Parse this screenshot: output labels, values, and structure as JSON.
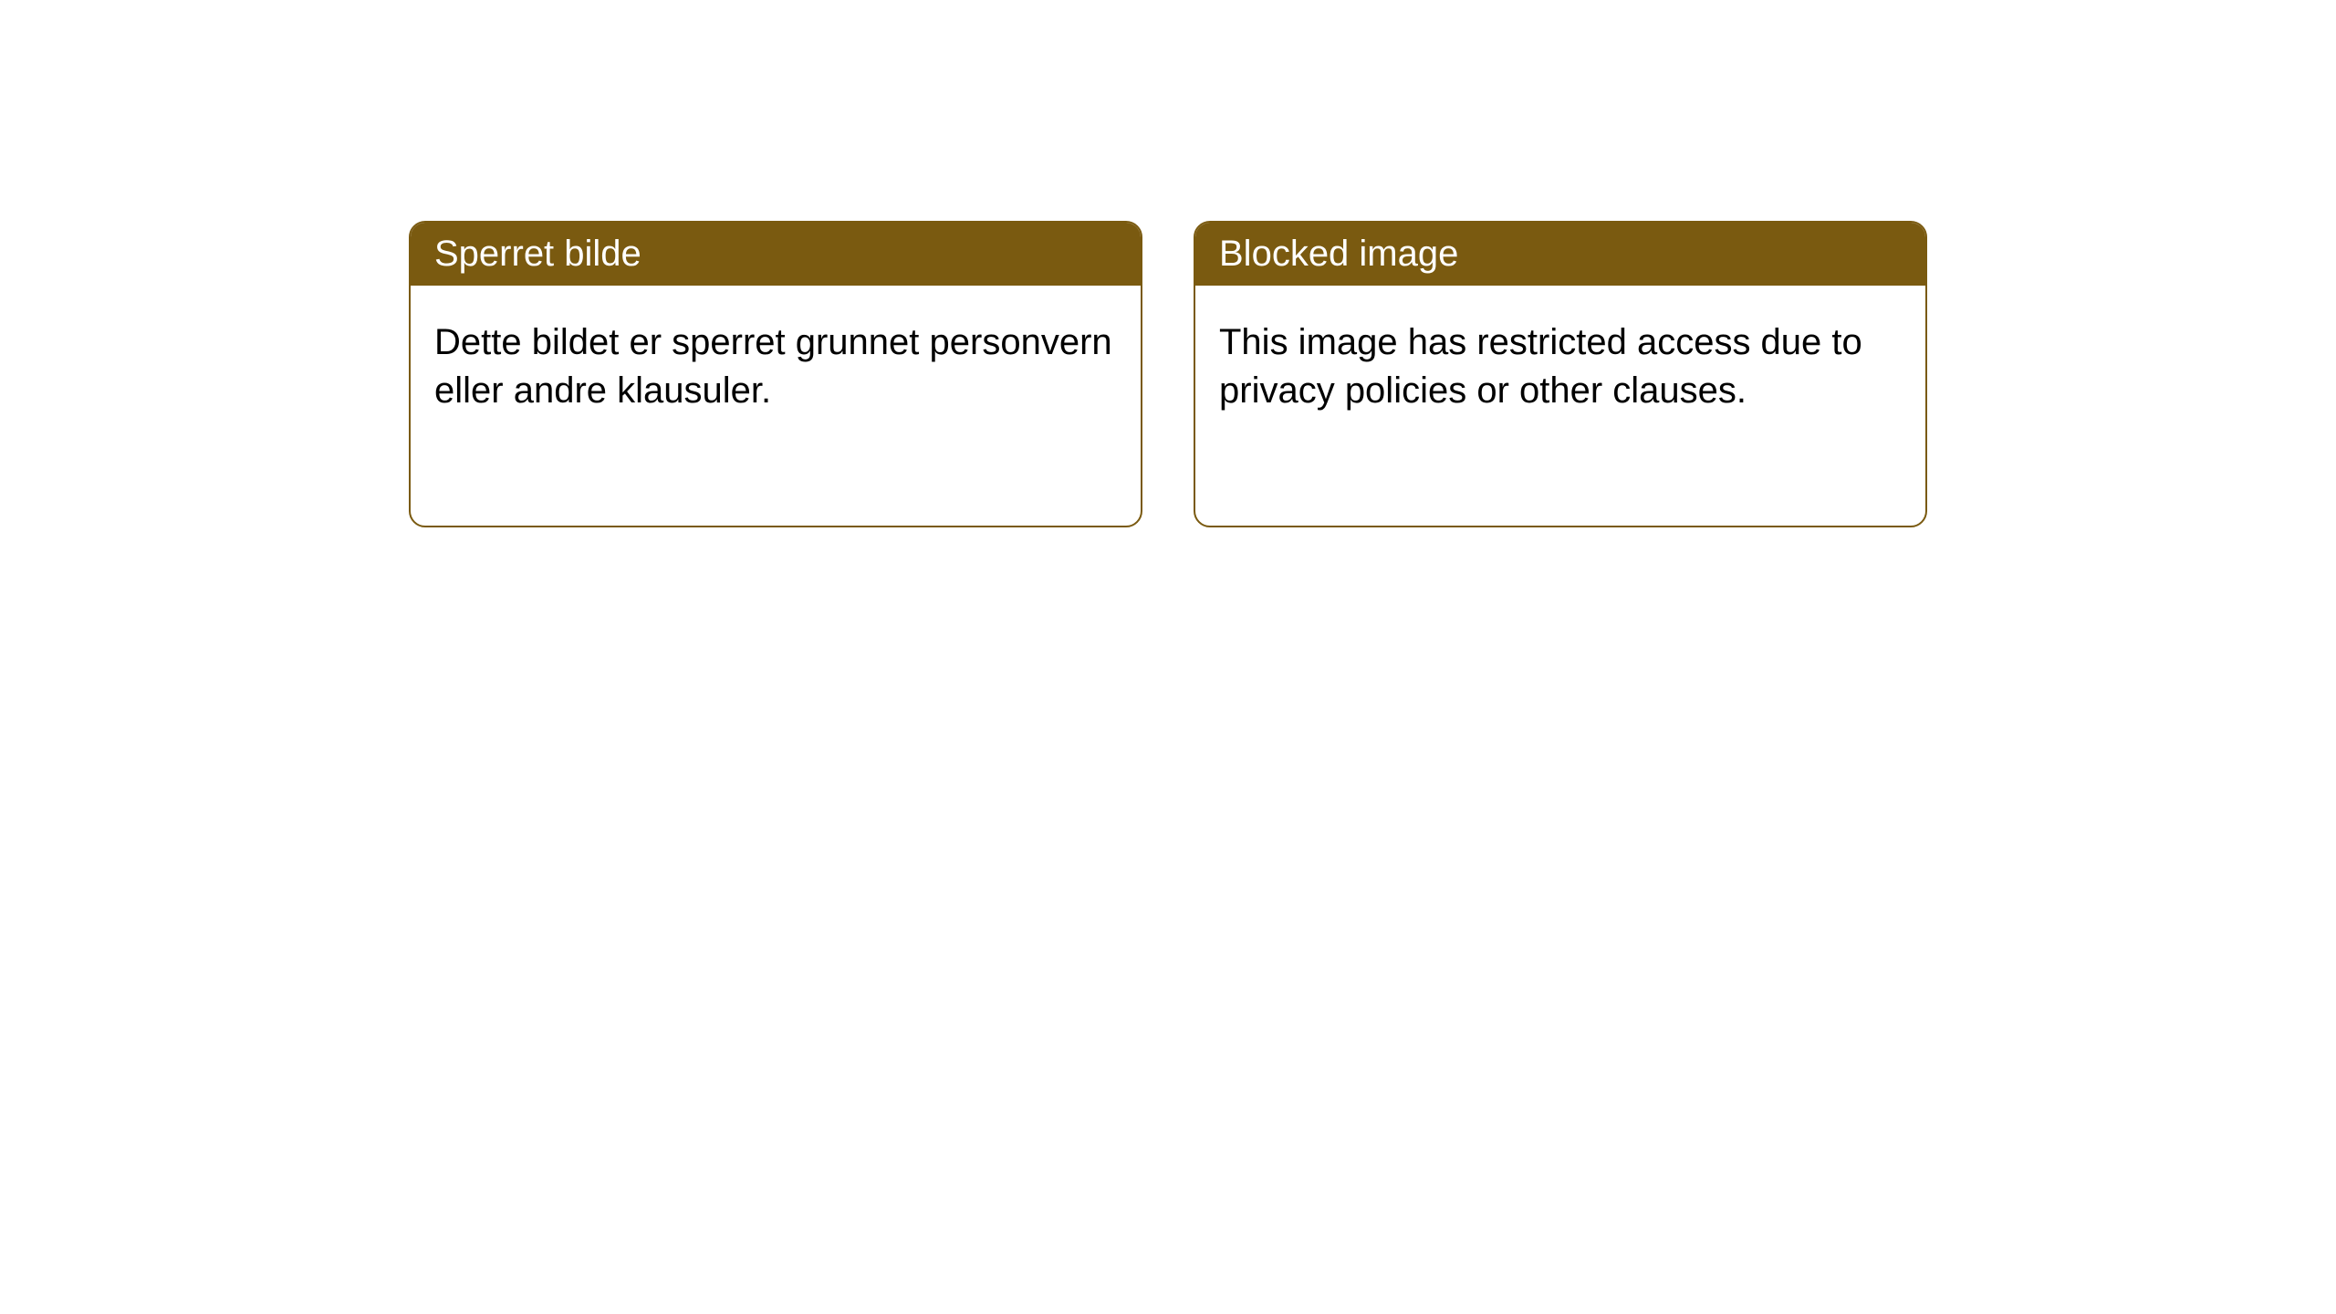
{
  "style": {
    "page_background": "#ffffff",
    "card_border_color": "#7a5a10",
    "card_border_width": "2px",
    "card_border_radius": "18px",
    "header_background": "#7a5a10",
    "header_text_color": "#ffffff",
    "body_text_color": "#000000",
    "header_font_size": 40,
    "body_font_size": 40
  },
  "cards": [
    {
      "title": "Sperret bilde",
      "body": "Dette bildet er sperret grunnet personvern eller andre klausuler."
    },
    {
      "title": "Blocked image",
      "body": "This image has restricted access due to privacy policies or other clauses."
    }
  ]
}
